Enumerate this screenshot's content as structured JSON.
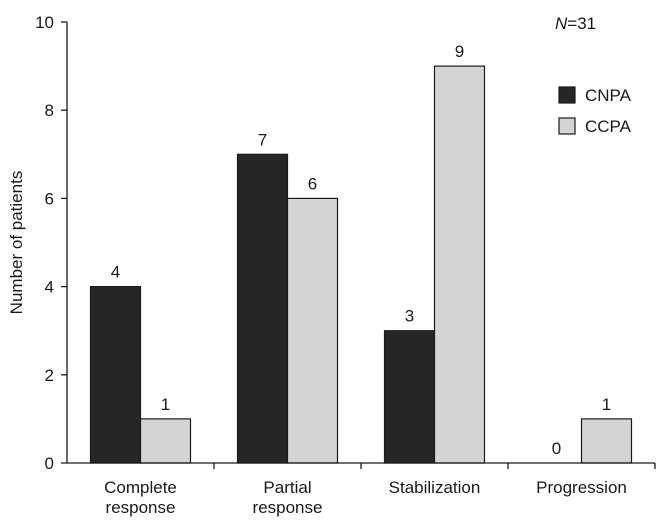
{
  "chart_data": {
    "type": "bar",
    "categories": [
      [
        "Complete",
        "response"
      ],
      [
        "Partial",
        "response"
      ],
      [
        "Stabilization"
      ],
      [
        "Progression"
      ]
    ],
    "series": [
      {
        "name": "CNPA",
        "values": [
          4,
          7,
          3,
          0
        ],
        "color": "#262626"
      },
      {
        "name": "CCPA",
        "values": [
          1,
          6,
          9,
          1
        ],
        "color": "#d4d4d4"
      }
    ],
    "ylabel": "Number of patients",
    "xlabel": "",
    "ylim": [
      0,
      10
    ],
    "yticks": [
      0,
      2,
      4,
      6,
      8,
      10
    ],
    "data_labels": true,
    "legend_position": "top-right",
    "annotation": {
      "italic": "N",
      "text": "=31"
    }
  }
}
